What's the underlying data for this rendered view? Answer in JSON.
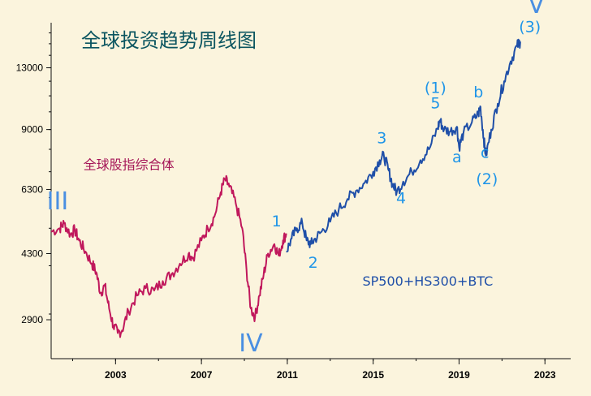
{
  "chart_data": {
    "type": "line",
    "title": "全球投资趋势周线图",
    "xlabel": "",
    "ylabel": "",
    "xlim": [
      2000.0,
      2024.2
    ],
    "ylim": [
      2300,
      17000
    ],
    "y_scale": "log",
    "grid": false,
    "x_ticks": [
      2003,
      2007,
      2011,
      2015,
      2019,
      2023
    ],
    "x_tick_labels": [
      "2003",
      "2007",
      "2011",
      "2015",
      "2019",
      "2023"
    ],
    "y_ticks": [
      2900,
      4300,
      6300,
      9000,
      13000
    ],
    "y_tick_labels": [
      "2900",
      "4300",
      "6300",
      "9000",
      "13000"
    ],
    "series": [
      {
        "name": "全球股指综合体",
        "color": "#c0185c",
        "points": [
          [
            2000.0,
            4900
          ],
          [
            2000.4,
            5000
          ],
          [
            2000.6,
            5150
          ],
          [
            2000.9,
            4820
          ],
          [
            2001.1,
            4950
          ],
          [
            2001.3,
            4650
          ],
          [
            2001.6,
            4350
          ],
          [
            2001.9,
            4050
          ],
          [
            2002.1,
            3850
          ],
          [
            2002.3,
            3400
          ],
          [
            2002.5,
            3550
          ],
          [
            2002.7,
            3100
          ],
          [
            2002.9,
            2800
          ],
          [
            2003.1,
            2680
          ],
          [
            2003.3,
            2720
          ],
          [
            2003.6,
            3050
          ],
          [
            2004.0,
            3350
          ],
          [
            2004.4,
            3500
          ],
          [
            2004.8,
            3450
          ],
          [
            2005.2,
            3650
          ],
          [
            2005.6,
            3800
          ],
          [
            2006.0,
            4050
          ],
          [
            2006.4,
            4300
          ],
          [
            2006.6,
            4200
          ],
          [
            2007.0,
            4650
          ],
          [
            2007.3,
            5000
          ],
          [
            2007.6,
            5350
          ],
          [
            2007.9,
            6200
          ],
          [
            2008.1,
            6700
          ],
          [
            2008.3,
            6400
          ],
          [
            2008.6,
            5800
          ],
          [
            2008.9,
            5000
          ],
          [
            2009.1,
            3900
          ],
          [
            2009.3,
            3100
          ],
          [
            2009.5,
            2950
          ],
          [
            2009.7,
            3350
          ],
          [
            2009.9,
            3800
          ],
          [
            2010.1,
            4300
          ],
          [
            2010.4,
            4550
          ],
          [
            2010.6,
            4250
          ],
          [
            2010.8,
            4650
          ],
          [
            2010.95,
            4850
          ]
        ]
      },
      {
        "name": "SP500+HS300+BTC",
        "color": "#1f4fa8",
        "points": [
          [
            2010.95,
            4350
          ],
          [
            2011.2,
            4700
          ],
          [
            2011.45,
            5000
          ],
          [
            2011.7,
            5150
          ],
          [
            2011.9,
            4650
          ],
          [
            2012.1,
            4550
          ],
          [
            2012.3,
            4700
          ],
          [
            2012.6,
            4900
          ],
          [
            2013.0,
            5200
          ],
          [
            2013.4,
            5600
          ],
          [
            2013.8,
            5950
          ],
          [
            2014.2,
            6250
          ],
          [
            2014.6,
            6550
          ],
          [
            2015.0,
            7000
          ],
          [
            2015.3,
            7500
          ],
          [
            2015.5,
            7700
          ],
          [
            2015.7,
            7100
          ],
          [
            2015.9,
            6500
          ],
          [
            2016.1,
            6200
          ],
          [
            2016.4,
            6600
          ],
          [
            2016.8,
            7000
          ],
          [
            2017.2,
            7500
          ],
          [
            2017.6,
            8000
          ],
          [
            2018.0,
            9050
          ],
          [
            2018.1,
            9500
          ],
          [
            2018.3,
            9000
          ],
          [
            2018.6,
            8900
          ],
          [
            2018.9,
            9150
          ],
          [
            2019.0,
            8100
          ],
          [
            2019.2,
            8800
          ],
          [
            2019.6,
            9400
          ],
          [
            2019.9,
            9900
          ],
          [
            2020.0,
            10300
          ],
          [
            2020.15,
            8500
          ],
          [
            2020.25,
            7700
          ],
          [
            2020.5,
            9000
          ],
          [
            2020.8,
            10500
          ],
          [
            2021.1,
            12000
          ],
          [
            2021.4,
            13500
          ],
          [
            2021.7,
            14800
          ],
          [
            2021.85,
            15200
          ]
        ]
      }
    ],
    "annotations": [
      {
        "text": "III",
        "x": 2000.3,
        "y": 5600,
        "color": "#4a8fe2",
        "size": "large"
      },
      {
        "text": "IV",
        "x": 2009.3,
        "y": 2400,
        "color": "#4a8fe2",
        "size": "large"
      },
      {
        "text": "1",
        "x": 2010.5,
        "y": 5050,
        "color": "#1f95e8",
        "size": "medium"
      },
      {
        "text": "2",
        "x": 2012.2,
        "y": 3950,
        "color": "#1f95e8",
        "size": "medium"
      },
      {
        "text": "3",
        "x": 2015.4,
        "y": 8300,
        "color": "#1f95e8",
        "size": "medium"
      },
      {
        "text": "4",
        "x": 2016.3,
        "y": 5800,
        "color": "#1f95e8",
        "size": "medium"
      },
      {
        "text": "5",
        "x": 2017.9,
        "y": 10200,
        "color": "#1f95e8",
        "size": "medium"
      },
      {
        "text": "(1)",
        "x": 2017.9,
        "y": 11200,
        "color": "#1f95e8",
        "size": "medium"
      },
      {
        "text": "a",
        "x": 2018.9,
        "y": 7400,
        "color": "#1f95e8",
        "size": "medium"
      },
      {
        "text": "b",
        "x": 2019.9,
        "y": 10900,
        "color": "#1f95e8",
        "size": "medium"
      },
      {
        "text": "c",
        "x": 2020.2,
        "y": 7600,
        "color": "#1f95e8",
        "size": "medium"
      },
      {
        "text": "(2)",
        "x": 2020.3,
        "y": 6500,
        "color": "#1f95e8",
        "size": "medium"
      },
      {
        "text": "(3)",
        "x": 2022.3,
        "y": 16100,
        "color": "#1f95e8",
        "size": "medium"
      },
      {
        "text": "V",
        "x": 2022.6,
        "y": 18000,
        "color": "#4a8fe2",
        "size": "large"
      }
    ],
    "legend_labels": [
      {
        "text": "全球股指综合体",
        "x": 2001.5,
        "y": 7100,
        "color": "#a51658"
      },
      {
        "text": "SP500+HS300+BTC",
        "x": 2014.5,
        "y": 3550,
        "color": "#1f4fa8"
      }
    ]
  }
}
